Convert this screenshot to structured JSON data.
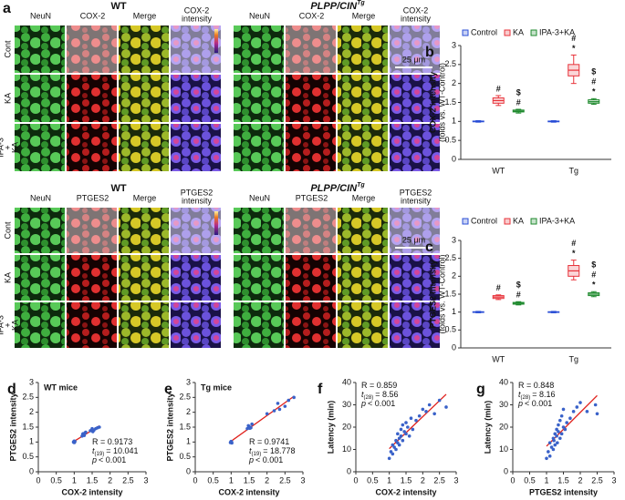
{
  "panel_a": {
    "label": "a",
    "row_labels": [
      [
        "Cont"
      ],
      [
        "KA"
      ],
      [
        "IPA-3",
        "+",
        "KA"
      ]
    ],
    "blocks": [
      {
        "groups": [
          {
            "title": "WT",
            "columns": [
              [
                "NeuN"
              ],
              [
                "COX-2"
              ],
              [
                "Merge"
              ],
              [
                "COX-2",
                "intensity"
              ]
            ]
          },
          {
            "title": {
              "text": "PLPP/CIN",
              "sup": "Tg"
            },
            "columns": [
              [
                "NeuN"
              ],
              [
                "COX-2"
              ],
              [
                "Merge"
              ],
              [
                "COX-2",
                "intensity"
              ]
            ],
            "scale_bar": "25 μm"
          }
        ]
      },
      {
        "groups": [
          {
            "title": "WT",
            "columns": [
              [
                "NeuN"
              ],
              [
                "PTGES2"
              ],
              [
                "Merge"
              ],
              [
                "PTGES2",
                "intensity"
              ]
            ]
          },
          {
            "title": {
              "text": "PLPP/CIN",
              "sup": "Tg"
            },
            "columns": [
              [
                "NeuN"
              ],
              [
                "PTGES2"
              ],
              [
                "Merge"
              ],
              [
                "PTGES2",
                "intensity"
              ]
            ],
            "scale_bar": "25 μm"
          }
        ]
      }
    ]
  },
  "chart_data": [
    {
      "type": "box",
      "panel": "b",
      "ylabel": [
        "COX-2 intensity",
        "(folds vs. WT-Control)"
      ],
      "categories": [
        "WT",
        "Tg"
      ],
      "ylim": [
        0,
        3
      ],
      "yticks": [
        0,
        0.5,
        1,
        1.5,
        2,
        2.5,
        3
      ],
      "series": [
        {
          "name": "Control",
          "color": "#2b4fd6",
          "values": [
            [
              0.98,
              0.99,
              1.0,
              1.01,
              1.02
            ],
            [
              0.98,
              0.99,
              1.0,
              1.01,
              1.02
            ]
          ]
        },
        {
          "name": "KA",
          "color": "#e8333a",
          "values": [
            [
              1.42,
              1.48,
              1.55,
              1.62,
              1.68
            ],
            [
              2.0,
              2.2,
              2.35,
              2.5,
              2.75
            ]
          ],
          "annotations": [
            [
              "#"
            ],
            [
              "#",
              "*"
            ]
          ]
        },
        {
          "name": "IPA-3+KA",
          "color": "#1f8a2e",
          "values": [
            [
              1.22,
              1.25,
              1.27,
              1.3,
              1.32
            ],
            [
              1.45,
              1.48,
              1.52,
              1.57,
              1.6
            ]
          ],
          "annotations": [
            [
              "$",
              "#"
            ],
            [
              "$",
              "#",
              "*"
            ]
          ]
        }
      ]
    },
    {
      "type": "box",
      "panel": "c",
      "ylabel": [
        "PTGES2 intensity",
        "(folds vs. WT-Control)"
      ],
      "categories": [
        "WT",
        "Tg"
      ],
      "ylim": [
        0,
        3
      ],
      "yticks": [
        0,
        0.5,
        1,
        1.5,
        2,
        2.5,
        3
      ],
      "series": [
        {
          "name": "Control",
          "color": "#2b4fd6",
          "values": [
            [
              0.98,
              0.99,
              1.0,
              1.01,
              1.02
            ],
            [
              0.98,
              0.99,
              1.0,
              1.01,
              1.02
            ]
          ]
        },
        {
          "name": "KA",
          "color": "#e8333a",
          "values": [
            [
              1.35,
              1.38,
              1.42,
              1.46,
              1.48
            ],
            [
              1.9,
              2.0,
              2.15,
              2.3,
              2.45
            ]
          ],
          "annotations": [
            [
              "#"
            ],
            [
              "#",
              "*"
            ]
          ]
        },
        {
          "name": "IPA-3+KA",
          "color": "#1f8a2e",
          "values": [
            [
              1.2,
              1.22,
              1.25,
              1.27,
              1.29
            ],
            [
              1.43,
              1.46,
              1.5,
              1.54,
              1.57
            ]
          ],
          "annotations": [
            [
              "$",
              "#"
            ],
            [
              "$",
              "#",
              "*"
            ]
          ]
        }
      ]
    },
    {
      "type": "scatter",
      "panel": "d",
      "title": "WT mice",
      "xlabel": "COX-2 intensity",
      "ylabel": "PTGES2 intensity",
      "x": [
        0.98,
        1.0,
        1.02,
        1.0,
        0.99,
        1.01,
        1.0,
        1.22,
        1.25,
        1.28,
        1.3,
        1.26,
        1.24,
        1.32,
        1.45,
        1.5,
        1.55,
        1.6,
        1.65,
        1.7,
        1.52
      ],
      "values": [
        1.0,
        0.98,
        1.02,
        1.0,
        1.01,
        0.99,
        1.03,
        1.2,
        1.28,
        1.22,
        1.3,
        1.25,
        1.27,
        1.33,
        1.38,
        1.45,
        1.4,
        1.45,
        1.48,
        1.5,
        1.35
      ],
      "xlim": [
        0,
        3
      ],
      "xticks": [
        0,
        0.5,
        1,
        1.5,
        2,
        2.5,
        3
      ],
      "ylim": [
        0,
        3
      ],
      "yticks": [
        0,
        0.5,
        1,
        1.5,
        2,
        2.5,
        3
      ],
      "color": "#3a62c9",
      "fit_color": "#e0201b",
      "stats_corner": "lower-right",
      "stats": [
        {
          "text": "R = 0.9173"
        },
        {
          "text": "t",
          "sub": "(19)",
          "rest": "= 10.041"
        },
        {
          "text": "p",
          "rest": "< 0.001"
        }
      ]
    },
    {
      "type": "scatter",
      "panel": "e",
      "title": "Tg mice",
      "xlabel": "COX-2 intensity",
      "ylabel": "PTGES2 intensity",
      "x": [
        0.98,
        1.0,
        1.02,
        1.0,
        0.99,
        1.01,
        1.0,
        1.45,
        1.5,
        1.55,
        1.5,
        1.48,
        1.58,
        1.52,
        2.0,
        2.2,
        2.35,
        2.5,
        2.6,
        2.75,
        2.3
      ],
      "values": [
        0.98,
        1.0,
        0.97,
        1.02,
        1.0,
        1.01,
        0.99,
        1.45,
        1.52,
        1.48,
        1.5,
        1.55,
        1.6,
        1.46,
        1.95,
        2.05,
        2.1,
        2.2,
        2.4,
        2.5,
        2.3
      ],
      "xlim": [
        0,
        3
      ],
      "xticks": [
        0,
        0.5,
        1,
        1.5,
        2,
        2.5,
        3
      ],
      "ylim": [
        0,
        3
      ],
      "yticks": [
        0,
        0.5,
        1,
        1.5,
        2,
        2.5,
        3
      ],
      "color": "#3a62c9",
      "fit_color": "#e0201b",
      "stats_corner": "lower-right",
      "stats": [
        {
          "text": "R = 0.9741"
        },
        {
          "text": "t",
          "sub": "(19)",
          "rest": "= 18.778"
        },
        {
          "text": "p",
          "rest": "< 0.001"
        }
      ]
    },
    {
      "type": "scatter",
      "panel": "f",
      "xlabel": "COX-2 intensity",
      "ylabel": "Latency (min)",
      "x": [
        1.0,
        1.05,
        1.1,
        1.1,
        1.15,
        1.2,
        1.2,
        1.25,
        1.25,
        1.3,
        1.3,
        1.35,
        1.35,
        1.4,
        1.4,
        1.45,
        1.5,
        1.5,
        1.55,
        1.6,
        1.65,
        1.7,
        1.8,
        1.9,
        2.0,
        2.1,
        2.2,
        2.35,
        2.5,
        2.7
      ],
      "values": [
        6,
        9,
        8,
        12,
        11,
        14,
        10,
        13,
        17,
        12,
        15,
        16,
        19,
        14,
        21,
        18,
        17,
        22,
        20,
        16,
        24,
        19,
        23,
        25,
        28,
        27,
        30,
        26,
        32,
        29
      ],
      "xlim": [
        0,
        3
      ],
      "xticks": [
        0,
        0.5,
        1,
        1.5,
        2,
        2.5,
        3
      ],
      "ylim": [
        0,
        40
      ],
      "yticks": [
        0,
        10,
        20,
        30,
        40
      ],
      "color": "#3a62c9",
      "fit_color": "#e0201b",
      "stats_corner": "upper-left",
      "stats": [
        {
          "text": "R = 0.859"
        },
        {
          "text": "t",
          "sub": "(28)",
          "rest": "= 8.56"
        },
        {
          "text": "p",
          "rest": "< 0.001"
        }
      ]
    },
    {
      "type": "scatter",
      "panel": "g",
      "xlabel": "PTGES2 intensity",
      "ylabel": "Latency (min)",
      "x": [
        1.0,
        1.05,
        1.1,
        1.1,
        1.15,
        1.2,
        1.2,
        1.22,
        1.25,
        1.25,
        1.3,
        1.3,
        1.32,
        1.35,
        1.35,
        1.4,
        1.4,
        1.45,
        1.45,
        1.5,
        1.5,
        1.55,
        1.6,
        1.7,
        1.8,
        1.9,
        2.0,
        2.2,
        2.45,
        2.5
      ],
      "values": [
        6,
        9,
        7,
        13,
        11,
        10,
        15,
        14,
        12,
        17,
        16,
        19,
        13,
        18,
        21,
        15,
        23,
        17,
        25,
        20,
        28,
        19,
        22,
        24,
        27,
        29,
        31,
        27,
        30,
        26
      ],
      "xlim": [
        0,
        3
      ],
      "xticks": [
        0,
        0.5,
        1,
        1.5,
        2,
        2.5,
        3
      ],
      "ylim": [
        0,
        40
      ],
      "yticks": [
        0,
        10,
        20,
        30,
        40
      ],
      "color": "#3a62c9",
      "fit_color": "#e0201b",
      "stats_corner": "upper-left",
      "stats": [
        {
          "text": "R = 0.848"
        },
        {
          "text": "t",
          "sub": "(28)",
          "rest": "= 8.16"
        },
        {
          "text": "p",
          "rest": "< 0.001"
        }
      ]
    }
  ]
}
